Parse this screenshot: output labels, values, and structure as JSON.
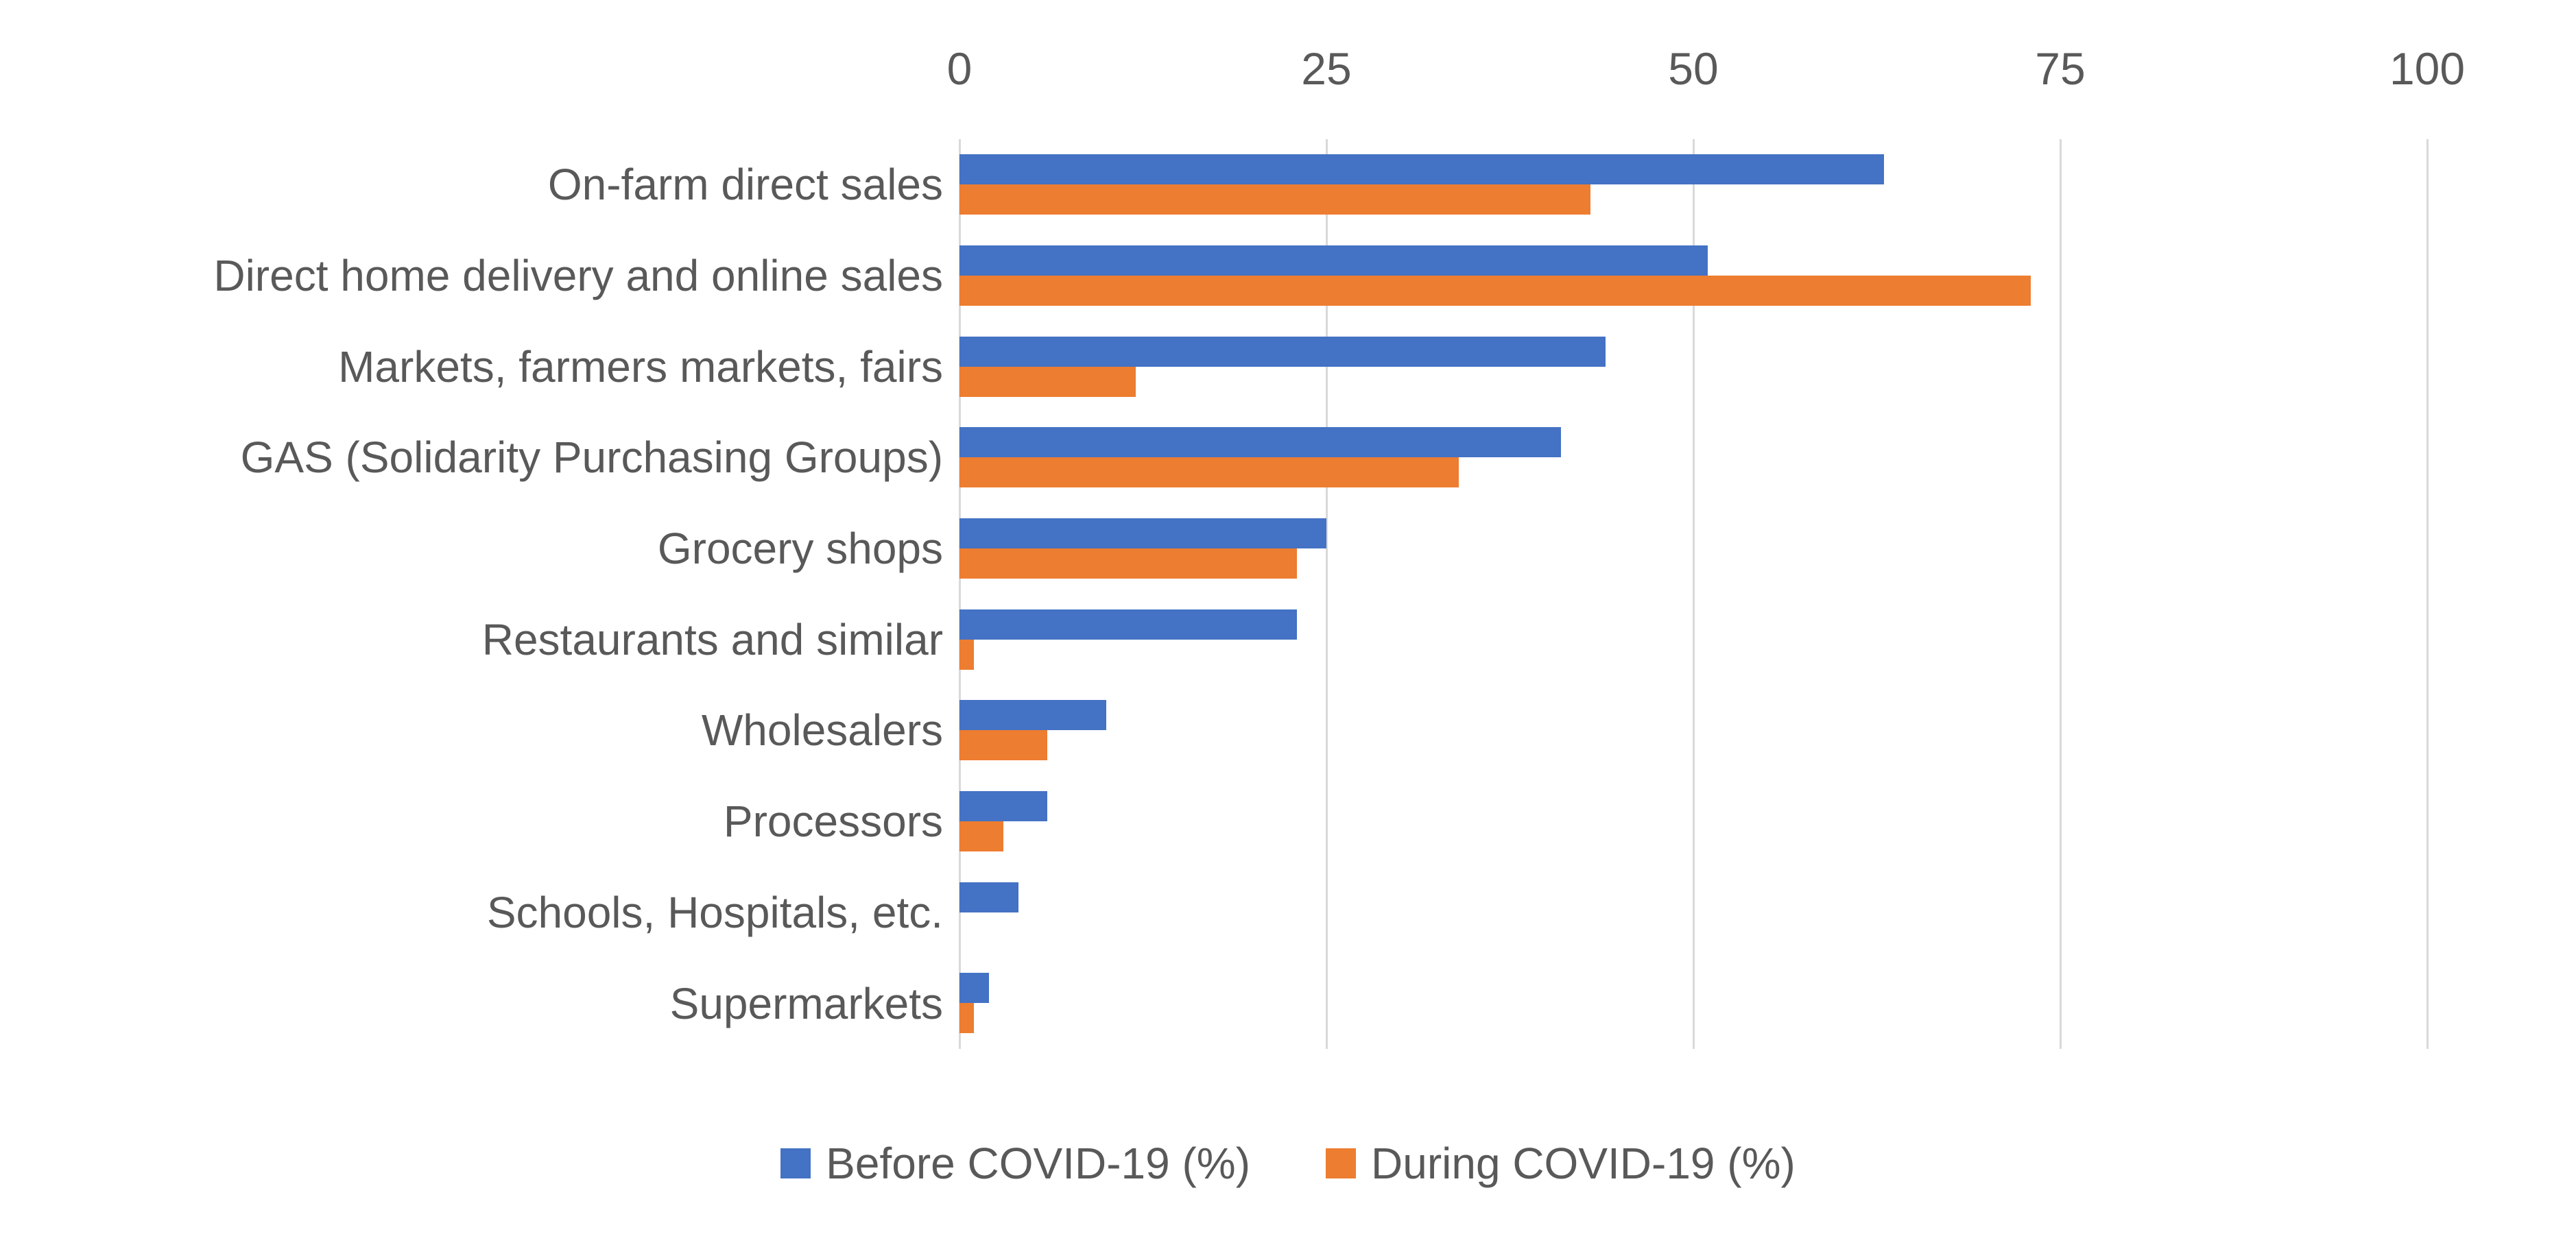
{
  "chart_data": {
    "type": "bar",
    "orientation": "horizontal",
    "categories": [
      "On-farm direct sales",
      "Direct home delivery and online sales",
      "Markets, farmers markets, fairs",
      "GAS (Solidarity Purchasing Groups)",
      "Grocery shops",
      "Restaurants and similar",
      "Wholesalers",
      "Processors",
      "Schools, Hospitals, etc.",
      "Supermarkets"
    ],
    "series": [
      {
        "name": "Before COVID-19 (%)",
        "color": "#4472C4",
        "values": [
          63,
          51,
          44,
          41,
          25,
          23,
          10,
          6,
          4,
          2
        ]
      },
      {
        "name": "During COVID-19 (%)",
        "color": "#ED7D31",
        "values": [
          43,
          73,
          12,
          34,
          23,
          1,
          6,
          3,
          0,
          1
        ]
      }
    ],
    "x_axis": {
      "position": "top",
      "min": 0,
      "max": 100,
      "ticks": [
        0,
        25,
        50,
        75,
        100
      ]
    },
    "grid": true,
    "legend_position": "bottom"
  },
  "colors": {
    "before_series": "#4472C4",
    "during_series": "#ED7D31",
    "gridline": "#D9D9D9",
    "text": "#595959",
    "background": "#FFFFFF"
  }
}
